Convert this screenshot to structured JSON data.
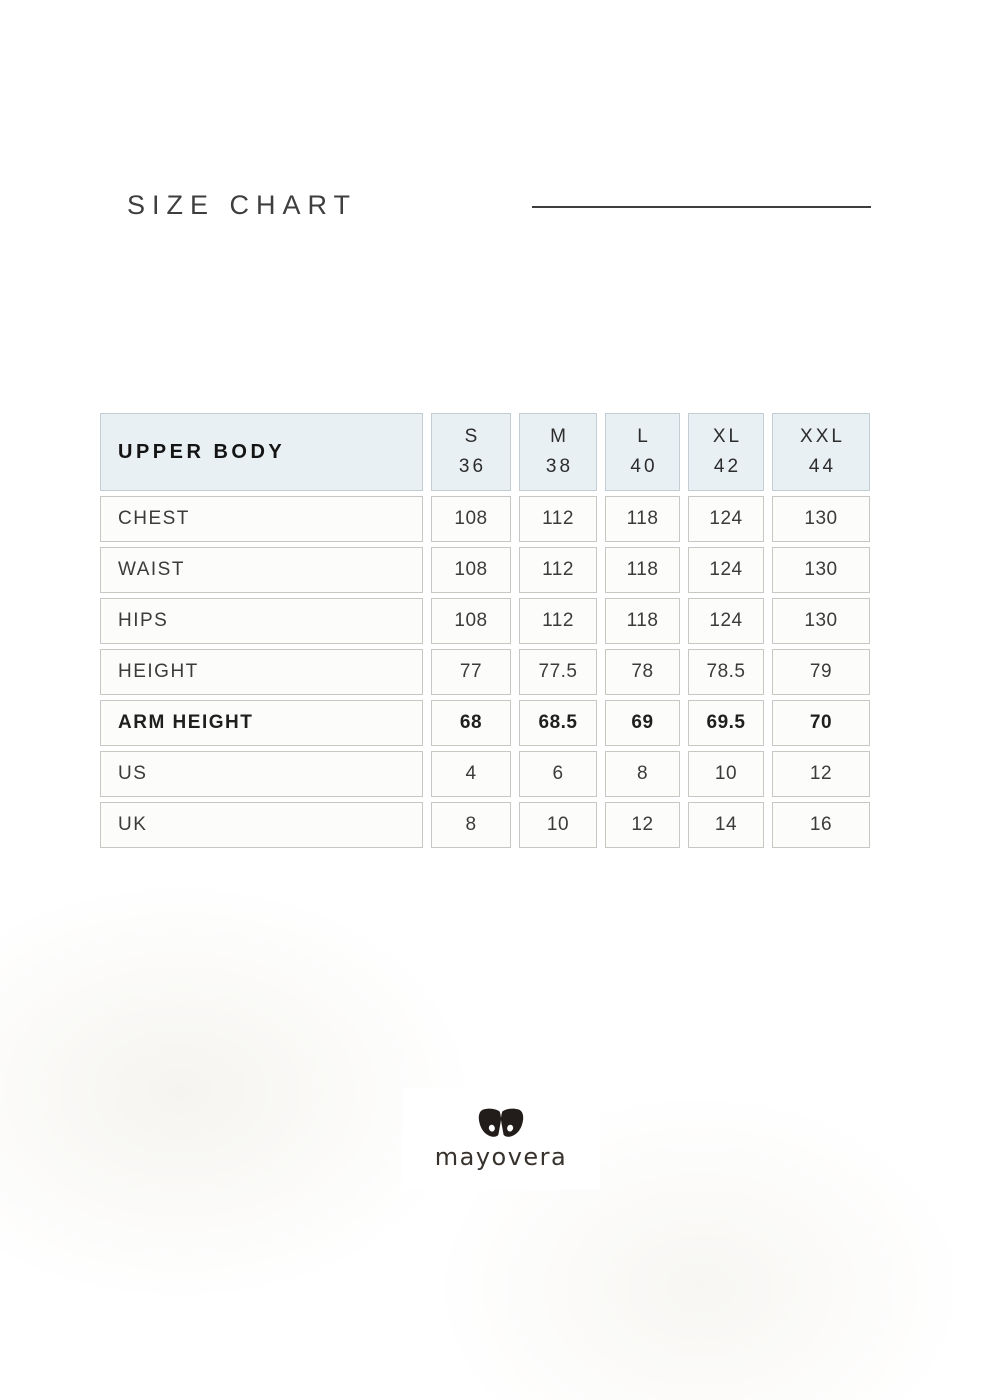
{
  "header": {
    "title": "SIZE CHART"
  },
  "table": {
    "corner_label": "UPPER BODY",
    "size_headers": [
      {
        "size": "S",
        "number": "36"
      },
      {
        "size": "M",
        "number": "38"
      },
      {
        "size": "L",
        "number": "40"
      },
      {
        "size": "XL",
        "number": "42"
      },
      {
        "size": "XXL",
        "number": "44"
      }
    ],
    "rows": [
      {
        "label": "CHEST",
        "values": [
          "108",
          "112",
          "118",
          "124",
          "130"
        ]
      },
      {
        "label": "WAIST",
        "values": [
          "108",
          "112",
          "118",
          "124",
          "130"
        ]
      },
      {
        "label": "HIPS",
        "values": [
          "108",
          "112",
          "118",
          "124",
          "130"
        ]
      },
      {
        "label": "HEIGHT",
        "values": [
          "77",
          "77.5",
          "78",
          "78.5",
          "79"
        ]
      },
      {
        "label": "ARM HEIGHT",
        "values": [
          "68",
          "68.5",
          "69",
          "69.5",
          "70"
        ],
        "emphasis": true
      },
      {
        "label": "US",
        "values": [
          "4",
          "6",
          "8",
          "10",
          "12"
        ]
      },
      {
        "label": "UK",
        "values": [
          "8",
          "10",
          "12",
          "14",
          "16"
        ]
      }
    ]
  },
  "brand": {
    "name": "mayovera",
    "logo_icon": "butterfly-m-icon"
  },
  "colors": {
    "page_background": "#f8f6f0",
    "header_cell_background": "#e9f0f3",
    "cell_background": "#fcfcfa",
    "cell_border": "#c7c7c3",
    "text": "#3b3b3b",
    "title_text": "#3e3e3e",
    "logo_box_background": "#ffffff",
    "logo_icon_color": "#221d1a"
  }
}
